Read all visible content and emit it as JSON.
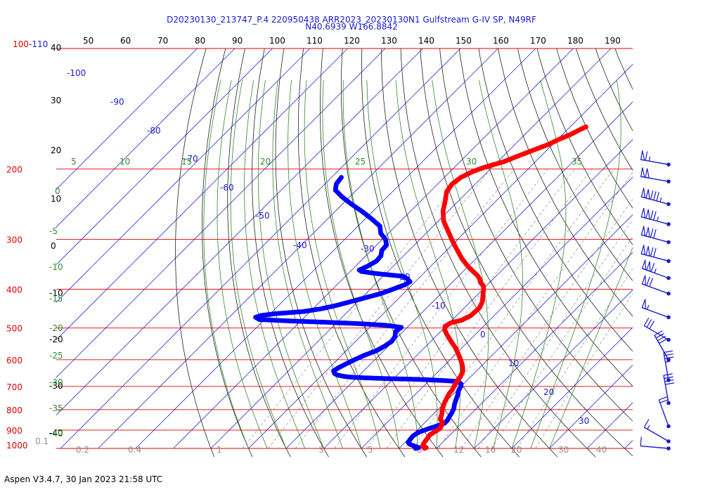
{
  "header": {
    "line1": "D20230130_213747_P.4 220950438 ARR2023_20230130N1 Gulfstream G-IV SP, N49RF",
    "line2": "N40.6939 W166.8842"
  },
  "footer": {
    "text": "Aspen V3.4.7, 30 Jan 2023  21:58 UTC"
  },
  "chart_data": {
    "type": "skew-t log-p sounding",
    "pressure_axis": {
      "labels": [
        "100-110",
        "200",
        "300",
        "400",
        "500",
        "600",
        "700",
        "800",
        "900",
        "1000"
      ],
      "color": "#e00000",
      "range_hPa": [
        100,
        1000
      ]
    },
    "top_axis_labels": [
      "50",
      "60",
      "70",
      "80",
      "90",
      "100",
      "110",
      "120",
      "130",
      "140",
      "150",
      "160",
      "170",
      "180",
      "190"
    ],
    "left_side_numbers": [
      "40",
      "30",
      "20",
      "10",
      "0",
      "-10",
      "-20",
      "-30",
      "-40"
    ],
    "isotherm_labels": [
      "-100",
      "-90",
      "-80",
      "-70",
      "-60",
      "-50",
      "-40",
      "-30",
      "-20",
      "-10",
      "0",
      "10",
      "20",
      "30"
    ],
    "dry_adiabat_labels": [
      "5",
      "10",
      "15",
      "20",
      "25",
      "30",
      "35"
    ],
    "moist_adiabat_labels_left": [
      "0",
      "-5",
      "-10",
      "-15",
      "-20",
      "-25",
      "-30",
      "-35",
      "-40"
    ],
    "mixing_ratio_labels": [
      "0.1",
      "0.2",
      "0.4",
      "1",
      "3",
      "5",
      "8",
      "12",
      "16",
      "20",
      "30",
      "40"
    ],
    "temperature_series": {
      "color": "#ff0000",
      "points": [
        [
          1000,
          6.8
        ],
        [
          995,
          7.0
        ],
        [
          985,
          5.6
        ],
        [
          970,
          5.2
        ],
        [
          945,
          4.9
        ],
        [
          925,
          4.6
        ],
        [
          905,
          5.2
        ],
        [
          890,
          5.6
        ],
        [
          875,
          5.2
        ],
        [
          860,
          4.6
        ],
        [
          845,
          3.2
        ],
        [
          830,
          2.6
        ],
        [
          815,
          2.0
        ],
        [
          800,
          1.2
        ],
        [
          785,
          0.6
        ],
        [
          770,
          0.0
        ],
        [
          750,
          -0.6
        ],
        [
          730,
          -1.2
        ],
        [
          710,
          -1.5
        ],
        [
          695,
          -2.0
        ],
        [
          680,
          -2.4
        ],
        [
          660,
          -2.8
        ],
        [
          640,
          -3.6
        ],
        [
          620,
          -5.2
        ],
        [
          600,
          -7.2
        ],
        [
          580,
          -9.4
        ],
        [
          560,
          -11.8
        ],
        [
          540,
          -14.6
        ],
        [
          520,
          -17.4
        ],
        [
          505,
          -19.4
        ],
        [
          495,
          -20.2
        ],
        [
          485,
          -19.6
        ],
        [
          478,
          -17.4
        ],
        [
          465,
          -16.2
        ],
        [
          445,
          -16.0
        ],
        [
          430,
          -16.8
        ],
        [
          415,
          -18.3
        ],
        [
          402,
          -19.6
        ],
        [
          392,
          -20.8
        ],
        [
          385,
          -22.4
        ],
        [
          377,
          -23.6
        ],
        [
          370,
          -25.0
        ],
        [
          360,
          -27.6
        ],
        [
          350,
          -30.2
        ],
        [
          335,
          -33.8
        ],
        [
          315,
          -38.2
        ],
        [
          300,
          -41.6
        ],
        [
          285,
          -45.0
        ],
        [
          270,
          -48.6
        ],
        [
          255,
          -51.4
        ],
        [
          240,
          -53.6
        ],
        [
          228,
          -55.6
        ],
        [
          218,
          -56.2
        ],
        [
          210,
          -55.6
        ],
        [
          203,
          -54.0
        ],
        [
          200,
          -52.8
        ],
        [
          197,
          -51.4
        ],
        [
          192,
          -48.4
        ],
        [
          186,
          -46.2
        ],
        [
          180,
          -43.8
        ],
        [
          174,
          -41.2
        ],
        [
          168,
          -39.4
        ],
        [
          164,
          -37.8
        ],
        [
          160,
          -36.8
        ],
        [
          157,
          -35.8
        ]
      ]
    },
    "dewpoint_series": {
      "color": "#0000ff",
      "points": [
        [
          1000,
          4.4
        ],
        [
          995,
          5.0
        ],
        [
          985,
          3.2
        ],
        [
          975,
          1.6
        ],
        [
          965,
          0.8
        ],
        [
          950,
          0.6
        ],
        [
          930,
          0.4
        ],
        [
          910,
          1.0
        ],
        [
          895,
          2.4
        ],
        [
          880,
          4.0
        ],
        [
          865,
          5.4
        ],
        [
          850,
          5.4
        ],
        [
          835,
          5.0
        ],
        [
          815,
          4.6
        ],
        [
          795,
          4.0
        ],
        [
          775,
          3.0
        ],
        [
          755,
          2.2
        ],
        [
          735,
          1.4
        ],
        [
          715,
          0.4
        ],
        [
          700,
          0.0
        ],
        [
          690,
          -0.6
        ],
        [
          685,
          -1.4
        ],
        [
          680,
          -2.6
        ],
        [
          677,
          -5.4
        ],
        [
          675,
          -8.4
        ],
        [
          673,
          -11.6
        ],
        [
          671,
          -15.4
        ],
        [
          670,
          -19.0
        ],
        [
          669,
          -22.0
        ],
        [
          667,
          -26.0
        ],
        [
          665,
          -29.4
        ],
        [
          663,
          -32.2
        ],
        [
          660,
          -34.0
        ],
        [
          655,
          -36.0
        ],
        [
          650,
          -37.0
        ],
        [
          640,
          -38.0
        ],
        [
          630,
          -37.6
        ],
        [
          615,
          -36.6
        ],
        [
          600,
          -35.4
        ],
        [
          585,
          -34.0
        ],
        [
          570,
          -32.0
        ],
        [
          555,
          -31.0
        ],
        [
          540,
          -30.4
        ],
        [
          525,
          -30.8
        ],
        [
          510,
          -32.0
        ],
        [
          498,
          -31.6
        ],
        [
          492,
          -36.4
        ],
        [
          488,
          -43.0
        ],
        [
          484,
          -52.0
        ],
        [
          480,
          -63.0
        ],
        [
          476,
          -71.4
        ],
        [
          470,
          -73.0
        ],
        [
          465,
          -72.0
        ],
        [
          460,
          -68.4
        ],
        [
          455,
          -62.0
        ],
        [
          448,
          -58.0
        ],
        [
          440,
          -55.0
        ],
        [
          430,
          -52.0
        ],
        [
          420,
          -49.0
        ],
        [
          410,
          -46.0
        ],
        [
          400,
          -44.0
        ],
        [
          390,
          -42.0
        ],
        [
          383,
          -41.4
        ],
        [
          376,
          -43.0
        ],
        [
          371,
          -44.8
        ],
        [
          368,
          -49.0
        ],
        [
          365,
          -53.0
        ],
        [
          361,
          -57.0
        ],
        [
          358,
          -58.0
        ],
        [
          350,
          -56.8
        ],
        [
          340,
          -55.8
        ],
        [
          330,
          -56.0
        ],
        [
          320,
          -57.2
        ],
        [
          310,
          -57.4
        ],
        [
          300,
          -59.2
        ],
        [
          290,
          -62.0
        ],
        [
          278,
          -64.2
        ],
        [
          267,
          -68.2
        ],
        [
          256,
          -72.6
        ],
        [
          245,
          -77.6
        ],
        [
          235,
          -82.0
        ],
        [
          226,
          -85.6
        ],
        [
          218,
          -87.0
        ],
        [
          210,
          -87.4
        ]
      ]
    },
    "wind_barbs": [
      {
        "p": 195,
        "dir": 280,
        "spd": 65
      },
      {
        "p": 215,
        "dir": 280,
        "spd": 100
      },
      {
        "p": 245,
        "dir": 285,
        "spd": 135
      },
      {
        "p": 275,
        "dir": 285,
        "spd": 125
      },
      {
        "p": 305,
        "dir": 285,
        "spd": 120
      },
      {
        "p": 340,
        "dir": 285,
        "spd": 120
      },
      {
        "p": 375,
        "dir": 290,
        "spd": 115
      },
      {
        "p": 410,
        "dir": 290,
        "spd": 70
      },
      {
        "p": 470,
        "dir": 290,
        "spd": 55
      },
      {
        "p": 535,
        "dir": 300,
        "spd": 30
      },
      {
        "p": 600,
        "dir": 330,
        "spd": 40
      },
      {
        "p": 675,
        "dir": 350,
        "spd": 35
      },
      {
        "p": 770,
        "dir": 350,
        "spd": 40
      },
      {
        "p": 880,
        "dir": 340,
        "spd": 20
      },
      {
        "p": 960,
        "dir": 300,
        "spd": 15
      },
      {
        "p": 1000,
        "dir": 275,
        "spd": 10
      }
    ]
  }
}
